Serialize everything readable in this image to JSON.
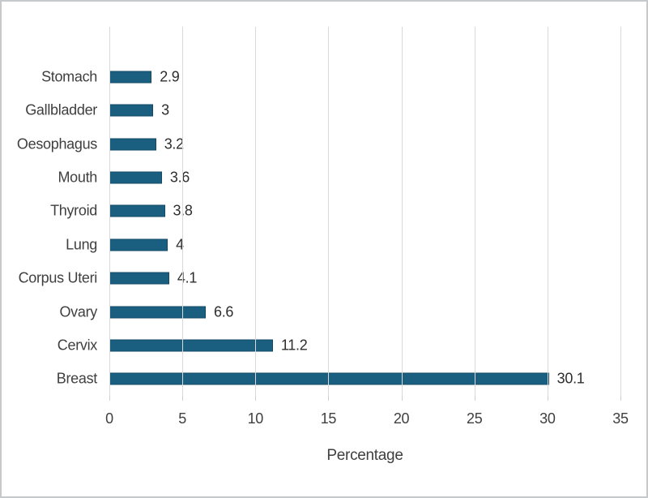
{
  "chart_data": {
    "type": "bar",
    "orientation": "horizontal",
    "title": "",
    "xlabel": "Percentage",
    "ylabel": "",
    "xlim": [
      0,
      35
    ],
    "grid": "vertical",
    "legend": "none",
    "categories": [
      "Stomach",
      "Gallbladder",
      "Oesophagus",
      "Mouth",
      "Thyroid",
      "Lung",
      "Corpus Uteri",
      "Ovary",
      "Cervix",
      "Breast"
    ],
    "values": [
      2.9,
      3,
      3.2,
      3.6,
      3.8,
      4,
      4.1,
      6.6,
      11.2,
      30.1
    ],
    "value_labels": [
      "2.9",
      "3",
      "3.2",
      "3.6",
      "3.8",
      "4",
      "4.1",
      "6.6",
      "11.2",
      "30.1"
    ],
    "x_ticks": [
      0,
      5,
      10,
      15,
      20,
      25,
      30,
      35
    ],
    "x_tick_labels": [
      "0",
      "5",
      "10",
      "15",
      "20",
      "25",
      "30",
      "35"
    ]
  },
  "colors": {
    "bar_fill": "#1a5f80",
    "bar_border": "#134b66",
    "gridline": "#d9d9d9",
    "tickmark": "#cfcfcf",
    "category_text": "#3f3f3f",
    "value_text": "#2e2e2e",
    "frame_border": "#c6c9cc",
    "background": "#ffffff"
  },
  "axis": {
    "title": "Percentage"
  }
}
